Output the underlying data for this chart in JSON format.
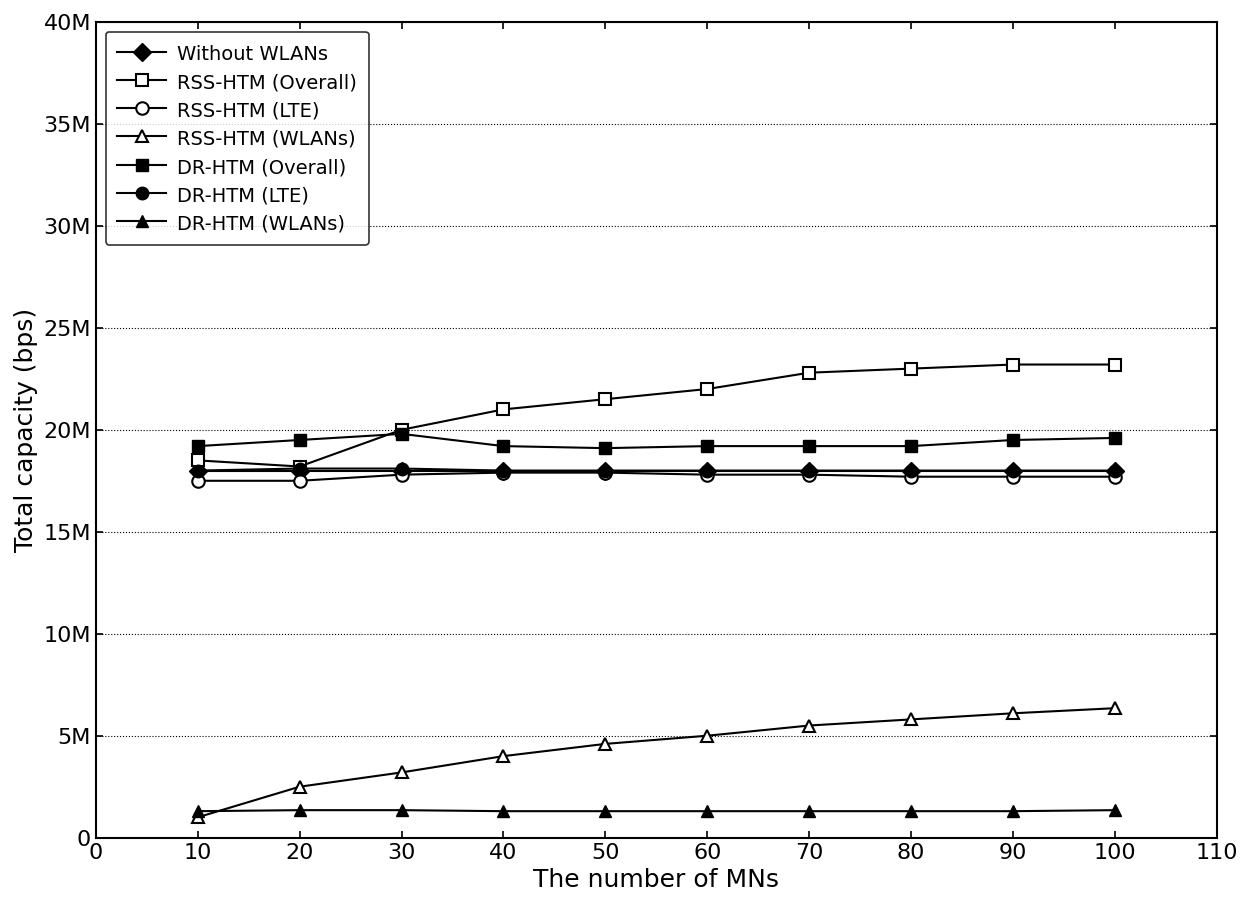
{
  "x": [
    10,
    20,
    30,
    40,
    50,
    60,
    70,
    80,
    90,
    100
  ],
  "without_wlans": [
    18000000,
    18000000,
    18000000,
    18000000,
    18000000,
    18000000,
    18000000,
    18000000,
    18000000,
    18000000
  ],
  "rss_overall": [
    18500000,
    18200000,
    20000000,
    21000000,
    21500000,
    22000000,
    22800000,
    23000000,
    23200000,
    23200000
  ],
  "rss_lte": [
    17500000,
    17500000,
    17800000,
    17900000,
    17900000,
    17800000,
    17800000,
    17700000,
    17700000,
    17700000
  ],
  "rss_wlans": [
    1000000,
    2500000,
    3200000,
    4000000,
    4600000,
    5000000,
    5500000,
    5800000,
    6100000,
    6350000
  ],
  "dr_overall": [
    19200000,
    19500000,
    19800000,
    19200000,
    19100000,
    19200000,
    19200000,
    19200000,
    19500000,
    19600000
  ],
  "dr_lte": [
    18000000,
    18100000,
    18100000,
    18000000,
    18000000,
    18000000,
    18000000,
    18000000,
    18000000,
    18000000
  ],
  "dr_wlans": [
    1300000,
    1350000,
    1350000,
    1300000,
    1300000,
    1300000,
    1300000,
    1300000,
    1300000,
    1350000
  ],
  "xlabel": "The number of MNs",
  "ylabel": "Total capacity (bps)",
  "xlim": [
    0,
    110
  ],
  "ylim": [
    0,
    40000000
  ],
  "yticks": [
    0,
    5000000,
    10000000,
    15000000,
    20000000,
    25000000,
    30000000,
    35000000,
    40000000
  ],
  "ytick_labels": [
    "0",
    "5M",
    "10M",
    "15M",
    "20M",
    "25M",
    "30M",
    "35M",
    "40M"
  ],
  "xticks": [
    0,
    10,
    20,
    30,
    40,
    50,
    60,
    70,
    80,
    90,
    100,
    110
  ],
  "legend_labels": [
    "Without WLANs",
    "RSS-HTM (Overall)",
    "RSS-HTM (LTE)",
    "RSS-HTM (WLANs)",
    "DR-HTM (Overall)",
    "DR-HTM (LTE)",
    "DR-HTM (WLANs)"
  ]
}
